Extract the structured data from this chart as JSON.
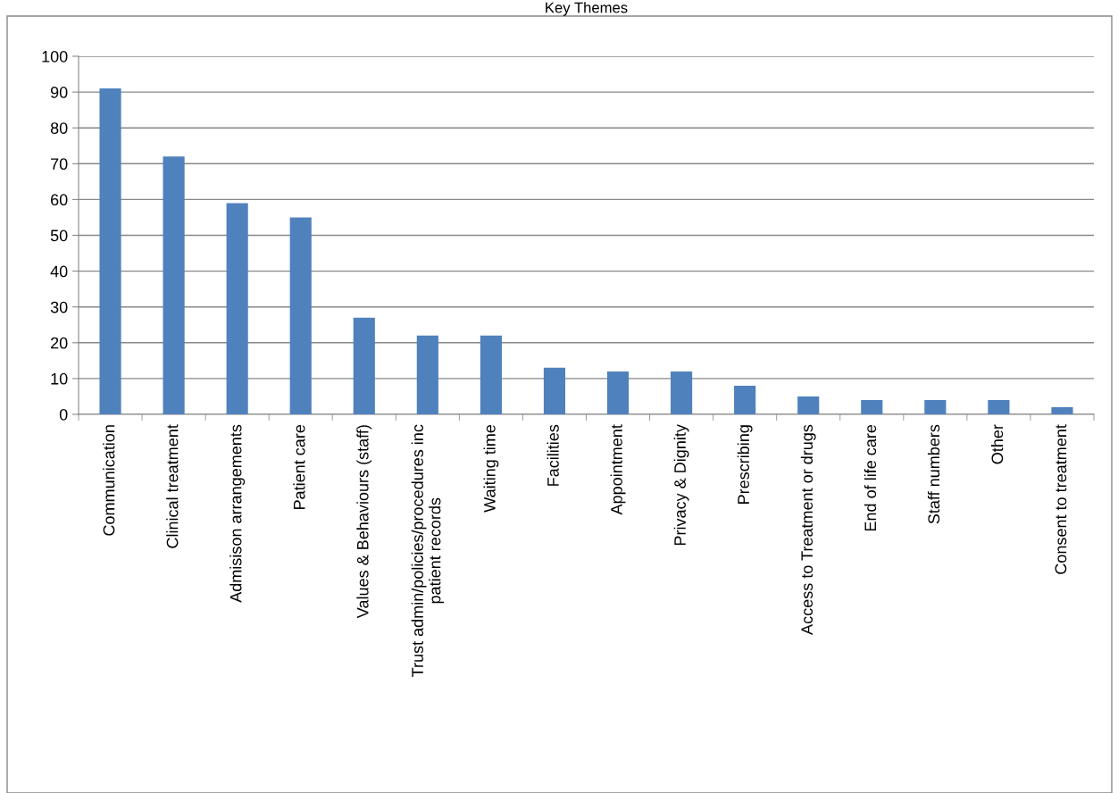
{
  "chart_data": {
    "type": "bar",
    "title": "Key Themes",
    "categories": [
      "Communication",
      "Clinical treatment",
      "Admisison arrangements",
      "Patient care",
      "Values & Behaviours (staff)",
      "Trust admin/policies/procedures inc\npatient records",
      "Waiting time",
      "Facilities",
      "Appointment",
      "Privacy & Dignity",
      "Prescribing",
      "Access to Treatment or drugs",
      "End of life care",
      "Staff numbers",
      "Other",
      "Consent to treatment"
    ],
    "values": [
      91,
      72,
      59,
      55,
      27,
      22,
      22,
      13,
      12,
      12,
      8,
      5,
      4,
      4,
      4,
      2
    ],
    "color": "#4f81bd",
    "ylim": [
      0,
      100
    ],
    "yticks": [
      0,
      10,
      20,
      30,
      40,
      50,
      60,
      70,
      80,
      90,
      100
    ],
    "grid": "y",
    "legend": false
  }
}
